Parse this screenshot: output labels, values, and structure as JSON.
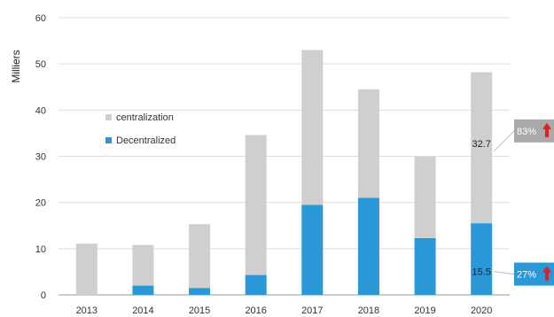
{
  "chart_data": {
    "type": "bar",
    "stacked": true,
    "categories": [
      "2013",
      "2014",
      "2015",
      "2016",
      "2017",
      "2018",
      "2019",
      "2020"
    ],
    "series": [
      {
        "name": "Decentralized",
        "color": "#2a97d6",
        "values": [
          0,
          2,
          1.5,
          4.3,
          19.5,
          21,
          12.3,
          15.5
        ]
      },
      {
        "name": "centralization",
        "color": "#cfcfcf",
        "values": [
          11.1,
          8.8,
          13.8,
          30.3,
          33.5,
          23.5,
          17.6,
          32.7
        ]
      }
    ],
    "ylabel": "Milliers",
    "ylim": [
      0,
      60
    ],
    "yticks": [
      "0",
      "10",
      "20",
      "30",
      "40",
      "50",
      "60"
    ],
    "grid": true,
    "legend_placement": "left-middle",
    "data_labels": [
      {
        "category": "2020",
        "series": "centralization",
        "text": "32.7"
      },
      {
        "category": "2020",
        "series": "Decentralized",
        "text": "15.5"
      }
    ],
    "annotations": [
      {
        "category": "2020",
        "series": "centralization",
        "text": "83%",
        "color": "#a9a9a9"
      },
      {
        "category": "2020",
        "series": "Decentralized",
        "text": "27%",
        "color": "#2a97d6"
      }
    ],
    "arrow_color": "#e02020"
  }
}
